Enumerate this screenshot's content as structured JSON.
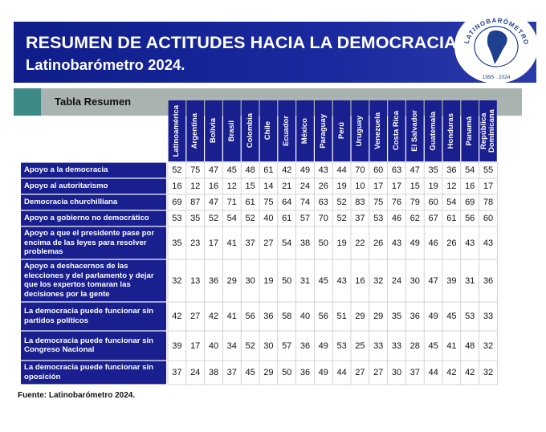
{
  "header": {
    "title_line1": "RESUMEN DE ACTITUDES HACIA LA DEMOCRACIA",
    "title_line2": "Latinobarómetro 2024.",
    "logo_text": "LATINOBARÓMETRO",
    "logo_years": "1995 · 2024"
  },
  "table_label": "Tabla Resumen",
  "source": "Fuente: Latinobarómetro 2024.",
  "colors": {
    "banner": "#1a2a9e",
    "header_cell": "#1a1f8f",
    "accent": "#3d8a87",
    "grey_bar": "#a9b3b0"
  },
  "chart_data": {
    "type": "table",
    "title": "RESUMEN DE ACTITUDES HACIA LA DEMOCRACIA",
    "columns": [
      "Latinoamérica",
      "Argentina",
      "Bolivia",
      "Brasil",
      "Colombia",
      "Chile",
      "Ecuador",
      "México",
      "Paraguay",
      "Perú",
      "Uruguay",
      "Venezuela",
      "Costa Rica",
      "El Salvador",
      "Guatemala",
      "Honduras",
      "Panamá",
      "República Dominicana"
    ],
    "rows": [
      {
        "label": "Apoyo a la democracia",
        "values": [
          52,
          75,
          47,
          45,
          48,
          61,
          42,
          49,
          43,
          44,
          70,
          60,
          63,
          47,
          35,
          36,
          54,
          55
        ]
      },
      {
        "label": "Apoyo al autoritarismo",
        "values": [
          16,
          12,
          16,
          12,
          15,
          14,
          21,
          24,
          26,
          19,
          10,
          17,
          17,
          15,
          19,
          12,
          16,
          17
        ]
      },
      {
        "label": "Democracia churchilliana",
        "values": [
          69,
          87,
          47,
          71,
          61,
          75,
          64,
          74,
          63,
          52,
          83,
          75,
          76,
          79,
          60,
          54,
          69,
          78
        ]
      },
      {
        "label": "Apoyo a gobierno no democrático",
        "values": [
          53,
          35,
          52,
          54,
          52,
          40,
          61,
          57,
          70,
          52,
          37,
          53,
          46,
          62,
          67,
          61,
          56,
          60
        ]
      },
      {
        "label": "Apoyo a que el presidente pase por encima de las leyes para resolver problemas",
        "values": [
          35,
          23,
          17,
          41,
          37,
          27,
          54,
          38,
          50,
          19,
          22,
          26,
          43,
          49,
          46,
          26,
          43,
          43
        ]
      },
      {
        "label": "Apoyo a deshacernos de las elecciones y del parlamento y dejar que los expertos tomaran las decisiones por la gente",
        "values": [
          32,
          13,
          36,
          29,
          30,
          19,
          50,
          31,
          45,
          43,
          16,
          32,
          24,
          30,
          47,
          39,
          31,
          36
        ]
      },
      {
        "label": "La democracia puede funcionar sin partidos políticos",
        "values": [
          42,
          27,
          42,
          41,
          56,
          36,
          58,
          40,
          56,
          51,
          29,
          29,
          35,
          36,
          49,
          45,
          53,
          33
        ]
      },
      {
        "label": "La democracia puede funcionar sin Congreso Nacional",
        "values": [
          39,
          17,
          40,
          34,
          52,
          30,
          57,
          36,
          49,
          53,
          25,
          33,
          33,
          28,
          45,
          41,
          48,
          32
        ]
      },
      {
        "label": "La democracia puede funcionar sin oposición",
        "values": [
          37,
          24,
          38,
          37,
          45,
          29,
          50,
          36,
          49,
          44,
          27,
          27,
          30,
          37,
          44,
          42,
          42,
          32
        ]
      }
    ]
  }
}
